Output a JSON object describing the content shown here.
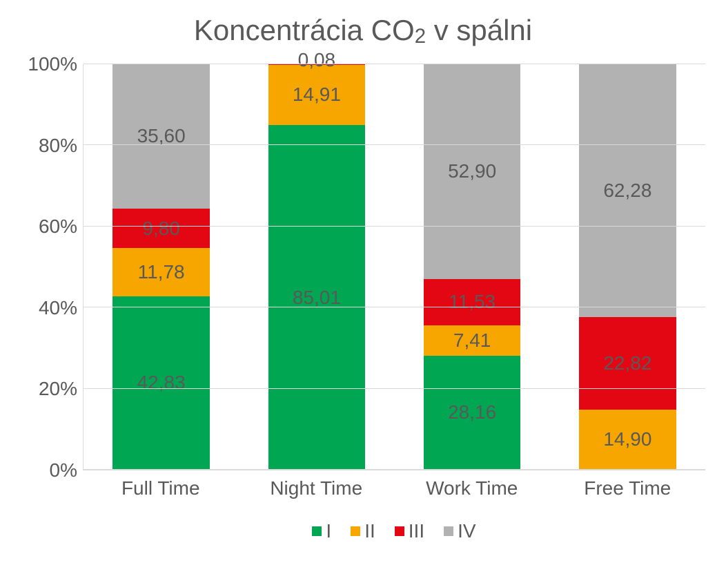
{
  "chart": {
    "type": "stacked-bar-100",
    "title_pre": "Koncentrácia CO",
    "title_sub": "2",
    "title_post": " v spálni",
    "title_fontsize": 42,
    "title_color": "#595959",
    "background_color": "#ffffff",
    "grid_color": "#d9d9d9",
    "label_color": "#595959",
    "label_fontsize": 28,
    "xlabel_fontsize": 28,
    "ylim": [
      0,
      100
    ],
    "ytick_step": 20,
    "yticks": [
      "0%",
      "20%",
      "40%",
      "60%",
      "80%",
      "100%"
    ],
    "categories": [
      "Full Time",
      "Night Time",
      "Work Time",
      "Free Time"
    ],
    "series": [
      {
        "name": "I",
        "color": "#00a651"
      },
      {
        "name": "II",
        "color": "#f7a600"
      },
      {
        "name": "III",
        "color": "#e30613"
      },
      {
        "name": "IV",
        "color": "#b2b2b2"
      }
    ],
    "bars": [
      {
        "category": "Full Time",
        "segments": [
          {
            "series": "I",
            "value": 42.83,
            "label": "42,83",
            "label_y_offset": 0
          },
          {
            "series": "II",
            "value": 11.78,
            "label": "11,78",
            "label_y_offset": 0
          },
          {
            "series": "III",
            "value": 9.8,
            "label": "9,80",
            "label_y_offset": 0
          },
          {
            "series": "IV",
            "value": 35.6,
            "label": "35,60",
            "label_y_offset": 0
          }
        ]
      },
      {
        "category": "Night Time",
        "segments": [
          {
            "series": "I",
            "value": 85.01,
            "label": "85,01",
            "label_y_offset": 0
          },
          {
            "series": "II",
            "value": 14.91,
            "label": "14,91",
            "label_y_offset": 0
          },
          {
            "series": "III",
            "value": 0.08,
            "label": "0,08",
            "label_y_offset": -22
          },
          {
            "series": "IV",
            "value": 0.0,
            "label": "",
            "label_y_offset": 0
          }
        ]
      },
      {
        "category": "Work Time",
        "segments": [
          {
            "series": "I",
            "value": 28.16,
            "label": "28,16",
            "label_y_offset": 0
          },
          {
            "series": "II",
            "value": 7.41,
            "label": "7,41",
            "label_y_offset": 0
          },
          {
            "series": "III",
            "value": 11.53,
            "label": "11,53",
            "label_y_offset": 0
          },
          {
            "series": "IV",
            "value": 52.9,
            "label": "52,90",
            "label_y_offset": 0
          }
        ]
      },
      {
        "category": "Free Time",
        "segments": [
          {
            "series": "I",
            "value": 0.0,
            "label": "",
            "label_y_offset": 0
          },
          {
            "series": "II",
            "value": 14.9,
            "label": "14,90",
            "label_y_offset": 0
          },
          {
            "series": "III",
            "value": 22.82,
            "label": "22,82",
            "label_y_offset": 0
          },
          {
            "series": "IV",
            "value": 62.28,
            "label": "62,28",
            "label_y_offset": 0
          }
        ]
      }
    ]
  }
}
